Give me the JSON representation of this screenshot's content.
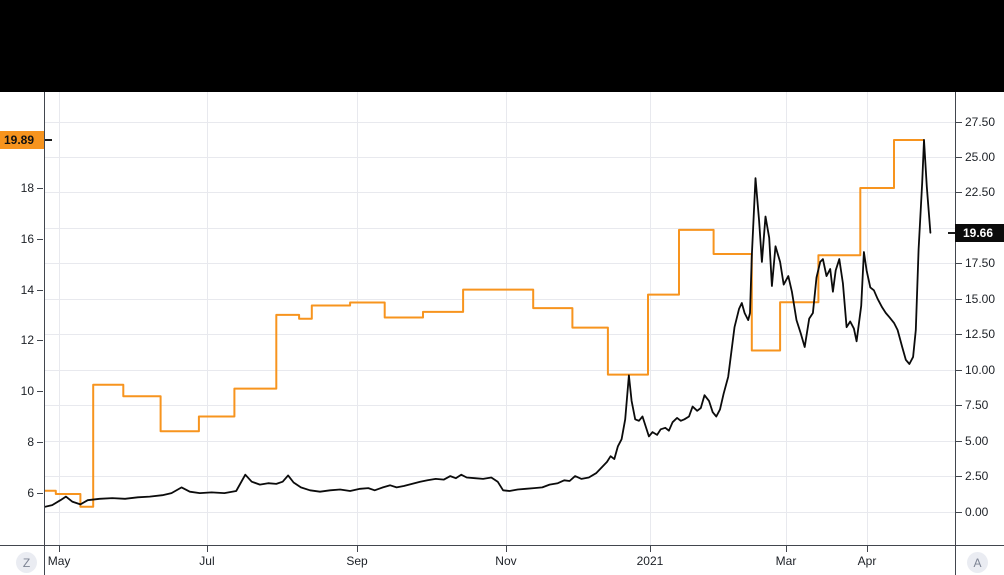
{
  "colors": {
    "top_bar": "#000000",
    "chart_bg": "#ffffff",
    "grid": "#e8e9ee",
    "axis_border": "#42464e",
    "tick_text": "#1c2026",
    "orange_series": "#f7941e",
    "black_series": "#0b0b0b",
    "badge_orange_bg": "#f7941e",
    "badge_orange_fg": "#111111",
    "badge_black_bg": "#0b0b0b",
    "badge_black_fg": "#ffffff",
    "button_bg": "#eaecf2",
    "button_fg": "#7d8494"
  },
  "buttons": {
    "z_label": "Z",
    "a_label": "A"
  },
  "price_labels": {
    "orange": {
      "text": "19.89",
      "value": 19.89,
      "axis": "left"
    },
    "black": {
      "text": "19.66",
      "value": 19.66,
      "axis": "right"
    }
  },
  "chart_data": {
    "type": "line",
    "title": "",
    "xlabel": "",
    "ylabel": "",
    "grid": true,
    "legend_position": "none",
    "x_ticks": [
      {
        "pos": 0.0165,
        "label": "May"
      },
      {
        "pos": 0.1789,
        "label": "Jul"
      },
      {
        "pos": 0.3436,
        "label": "Sep"
      },
      {
        "pos": 0.5071,
        "label": "Nov"
      },
      {
        "pos": 0.6652,
        "label": "2021"
      },
      {
        "pos": 0.8145,
        "label": "Mar"
      },
      {
        "pos": 0.9034,
        "label": "Apr"
      }
    ],
    "left_axis": {
      "min": 3.94,
      "max": 21.78,
      "ticks": [
        {
          "v": 18,
          "label": "18"
        },
        {
          "v": 16,
          "label": "16"
        },
        {
          "v": 14,
          "label": "14"
        },
        {
          "v": 12,
          "label": "12"
        },
        {
          "v": 10,
          "label": "10"
        },
        {
          "v": 8,
          "label": "8"
        },
        {
          "v": 6,
          "label": "6"
        }
      ]
    },
    "right_axis": {
      "min": -2.36,
      "max": 29.58,
      "grid_step": 2.5,
      "grid_min": 0,
      "grid_max": 27.5,
      "ticks": [
        {
          "v": 27.5,
          "label": "27.50"
        },
        {
          "v": 25,
          "label": "25.00"
        },
        {
          "v": 22.5,
          "label": "22.50"
        },
        {
          "v": 17.5,
          "label": "17.50"
        },
        {
          "v": 15,
          "label": "15.00"
        },
        {
          "v": 12.5,
          "label": "12.50"
        },
        {
          "v": 10,
          "label": "10.00"
        },
        {
          "v": 7.5,
          "label": "7.50"
        },
        {
          "v": 5,
          "label": "5.00"
        },
        {
          "v": 2.5,
          "label": "2.50"
        },
        {
          "v": 0,
          "label": "0.00"
        }
      ]
    },
    "series": [
      {
        "name": "orange-step-series",
        "type": "step",
        "axis": "left",
        "color": "#f7941e",
        "stroke_width": 2,
        "end_pos": 0.965,
        "last_value": 19.89,
        "points": [
          [
            0.0,
            6.08
          ],
          [
            0.013,
            5.95
          ],
          [
            0.04,
            5.45
          ],
          [
            0.054,
            10.25
          ],
          [
            0.087,
            9.8
          ],
          [
            0.128,
            8.42
          ],
          [
            0.17,
            9.0
          ],
          [
            0.209,
            10.1
          ],
          [
            0.255,
            13.0
          ],
          [
            0.28,
            12.85
          ],
          [
            0.294,
            13.37
          ],
          [
            0.336,
            13.49
          ],
          [
            0.374,
            12.9
          ],
          [
            0.416,
            13.12
          ],
          [
            0.46,
            14.0
          ],
          [
            0.537,
            13.27
          ],
          [
            0.58,
            12.5
          ],
          [
            0.619,
            10.65
          ],
          [
            0.663,
            13.8
          ],
          [
            0.697,
            16.35
          ],
          [
            0.735,
            15.4
          ],
          [
            0.777,
            11.6
          ],
          [
            0.808,
            13.5
          ],
          [
            0.85,
            15.35
          ],
          [
            0.896,
            18.0
          ],
          [
            0.933,
            19.89
          ]
        ]
      },
      {
        "name": "black-line-series",
        "type": "line",
        "axis": "right",
        "color": "#0b0b0b",
        "stroke_width": 1.8,
        "last_value": 19.66,
        "points": [
          [
            0.0,
            0.32
          ],
          [
            0.009,
            0.45
          ],
          [
            0.018,
            0.8
          ],
          [
            0.024,
            1.05
          ],
          [
            0.031,
            0.7
          ],
          [
            0.04,
            0.5
          ],
          [
            0.048,
            0.8
          ],
          [
            0.061,
            0.9
          ],
          [
            0.075,
            0.95
          ],
          [
            0.089,
            0.9
          ],
          [
            0.103,
            1.0
          ],
          [
            0.116,
            1.05
          ],
          [
            0.13,
            1.15
          ],
          [
            0.14,
            1.3
          ],
          [
            0.151,
            1.7
          ],
          [
            0.16,
            1.4
          ],
          [
            0.171,
            1.3
          ],
          [
            0.184,
            1.35
          ],
          [
            0.198,
            1.3
          ],
          [
            0.211,
            1.45
          ],
          [
            0.221,
            2.6
          ],
          [
            0.228,
            2.1
          ],
          [
            0.237,
            1.9
          ],
          [
            0.246,
            2.0
          ],
          [
            0.255,
            1.95
          ],
          [
            0.262,
            2.1
          ],
          [
            0.268,
            2.55
          ],
          [
            0.274,
            2.05
          ],
          [
            0.282,
            1.7
          ],
          [
            0.292,
            1.5
          ],
          [
            0.303,
            1.4
          ],
          [
            0.314,
            1.5
          ],
          [
            0.325,
            1.55
          ],
          [
            0.336,
            1.45
          ],
          [
            0.347,
            1.6
          ],
          [
            0.356,
            1.65
          ],
          [
            0.363,
            1.5
          ],
          [
            0.372,
            1.7
          ],
          [
            0.38,
            1.85
          ],
          [
            0.387,
            1.7
          ],
          [
            0.395,
            1.8
          ],
          [
            0.404,
            1.95
          ],
          [
            0.413,
            2.1
          ],
          [
            0.421,
            2.2
          ],
          [
            0.43,
            2.3
          ],
          [
            0.439,
            2.25
          ],
          [
            0.446,
            2.5
          ],
          [
            0.452,
            2.35
          ],
          [
            0.458,
            2.6
          ],
          [
            0.464,
            2.4
          ],
          [
            0.473,
            2.35
          ],
          [
            0.482,
            2.3
          ],
          [
            0.491,
            2.4
          ],
          [
            0.498,
            2.1
          ],
          [
            0.504,
            1.5
          ],
          [
            0.511,
            1.45
          ],
          [
            0.52,
            1.55
          ],
          [
            0.529,
            1.6
          ],
          [
            0.538,
            1.65
          ],
          [
            0.547,
            1.7
          ],
          [
            0.555,
            1.9
          ],
          [
            0.564,
            2.0
          ],
          [
            0.571,
            2.2
          ],
          [
            0.577,
            2.15
          ],
          [
            0.583,
            2.5
          ],
          [
            0.59,
            2.3
          ],
          [
            0.598,
            2.4
          ],
          [
            0.606,
            2.7
          ],
          [
            0.612,
            3.1
          ],
          [
            0.618,
            3.5
          ],
          [
            0.622,
            3.9
          ],
          [
            0.626,
            3.7
          ],
          [
            0.63,
            4.6
          ],
          [
            0.634,
            5.1
          ],
          [
            0.638,
            6.5
          ],
          [
            0.642,
            9.6
          ],
          [
            0.645,
            7.8
          ],
          [
            0.649,
            6.5
          ],
          [
            0.653,
            6.4
          ],
          [
            0.657,
            6.7
          ],
          [
            0.664,
            5.3
          ],
          [
            0.668,
            5.6
          ],
          [
            0.673,
            5.4
          ],
          [
            0.677,
            5.8
          ],
          [
            0.682,
            5.9
          ],
          [
            0.686,
            5.7
          ],
          [
            0.69,
            6.3
          ],
          [
            0.695,
            6.6
          ],
          [
            0.699,
            6.4
          ],
          [
            0.703,
            6.5
          ],
          [
            0.708,
            6.7
          ],
          [
            0.712,
            7.4
          ],
          [
            0.717,
            7.1
          ],
          [
            0.721,
            7.3
          ],
          [
            0.725,
            8.2
          ],
          [
            0.73,
            7.8
          ],
          [
            0.734,
            7.0
          ],
          [
            0.738,
            6.7
          ],
          [
            0.742,
            7.2
          ],
          [
            0.746,
            8.3
          ],
          [
            0.751,
            9.5
          ],
          [
            0.754,
            11.0
          ],
          [
            0.758,
            13.0
          ],
          [
            0.763,
            14.3
          ],
          [
            0.766,
            14.7
          ],
          [
            0.769,
            14.0
          ],
          [
            0.773,
            13.5
          ],
          [
            0.775,
            14.0
          ],
          [
            0.777,
            18.0
          ],
          [
            0.781,
            23.5
          ],
          [
            0.785,
            20.5
          ],
          [
            0.788,
            17.6
          ],
          [
            0.792,
            20.8
          ],
          [
            0.796,
            19.3
          ],
          [
            0.799,
            15.9
          ],
          [
            0.803,
            18.7
          ],
          [
            0.808,
            17.6
          ],
          [
            0.812,
            16.0
          ],
          [
            0.817,
            16.6
          ],
          [
            0.821,
            15.5
          ],
          [
            0.826,
            13.5
          ],
          [
            0.831,
            12.5
          ],
          [
            0.835,
            11.6
          ],
          [
            0.84,
            13.6
          ],
          [
            0.844,
            14.0
          ],
          [
            0.848,
            16.5
          ],
          [
            0.852,
            17.6
          ],
          [
            0.855,
            17.8
          ],
          [
            0.859,
            16.6
          ],
          [
            0.863,
            17.1
          ],
          [
            0.866,
            15.5
          ],
          [
            0.869,
            17.0
          ],
          [
            0.873,
            17.8
          ],
          [
            0.877,
            16.1
          ],
          [
            0.881,
            13.0
          ],
          [
            0.885,
            13.4
          ],
          [
            0.889,
            12.9
          ],
          [
            0.892,
            12.0
          ],
          [
            0.897,
            14.5
          ],
          [
            0.9,
            18.3
          ],
          [
            0.903,
            17.0
          ],
          [
            0.907,
            15.8
          ],
          [
            0.911,
            15.6
          ],
          [
            0.915,
            15.0
          ],
          [
            0.92,
            14.4
          ],
          [
            0.924,
            14.0
          ],
          [
            0.928,
            13.7
          ],
          [
            0.933,
            13.3
          ],
          [
            0.937,
            12.8
          ],
          [
            0.942,
            11.6
          ],
          [
            0.946,
            10.7
          ],
          [
            0.95,
            10.4
          ],
          [
            0.954,
            10.9
          ],
          [
            0.957,
            12.8
          ],
          [
            0.96,
            18.5
          ],
          [
            0.964,
            23.2
          ],
          [
            0.966,
            26.2
          ],
          [
            0.969,
            22.9
          ],
          [
            0.973,
            19.66
          ]
        ]
      }
    ]
  }
}
